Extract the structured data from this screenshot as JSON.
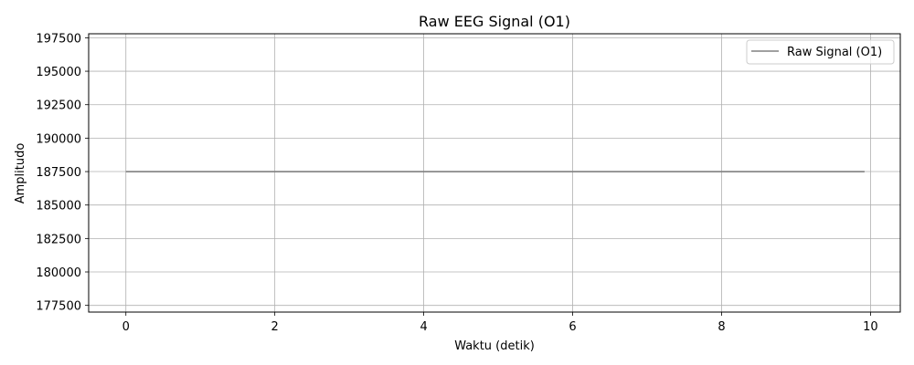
{
  "chart_data": {
    "type": "line",
    "title": "Raw EEG Signal (O1)",
    "xlabel": "Waktu (detik)",
    "ylabel": "Amplitudo",
    "xlim": [
      -0.5,
      10.4
    ],
    "ylim": [
      177000,
      197800
    ],
    "xticks": [
      0,
      2,
      4,
      6,
      8,
      10
    ],
    "yticks": [
      177500,
      180000,
      182500,
      185000,
      187500,
      190000,
      192500,
      195000,
      197500
    ],
    "grid": true,
    "legend_position": "top-right",
    "series": [
      {
        "name": "Raw Signal (O1)",
        "color": "#808080",
        "x": [
          0,
          9.92
        ],
        "y": [
          187500,
          187500
        ]
      }
    ]
  }
}
